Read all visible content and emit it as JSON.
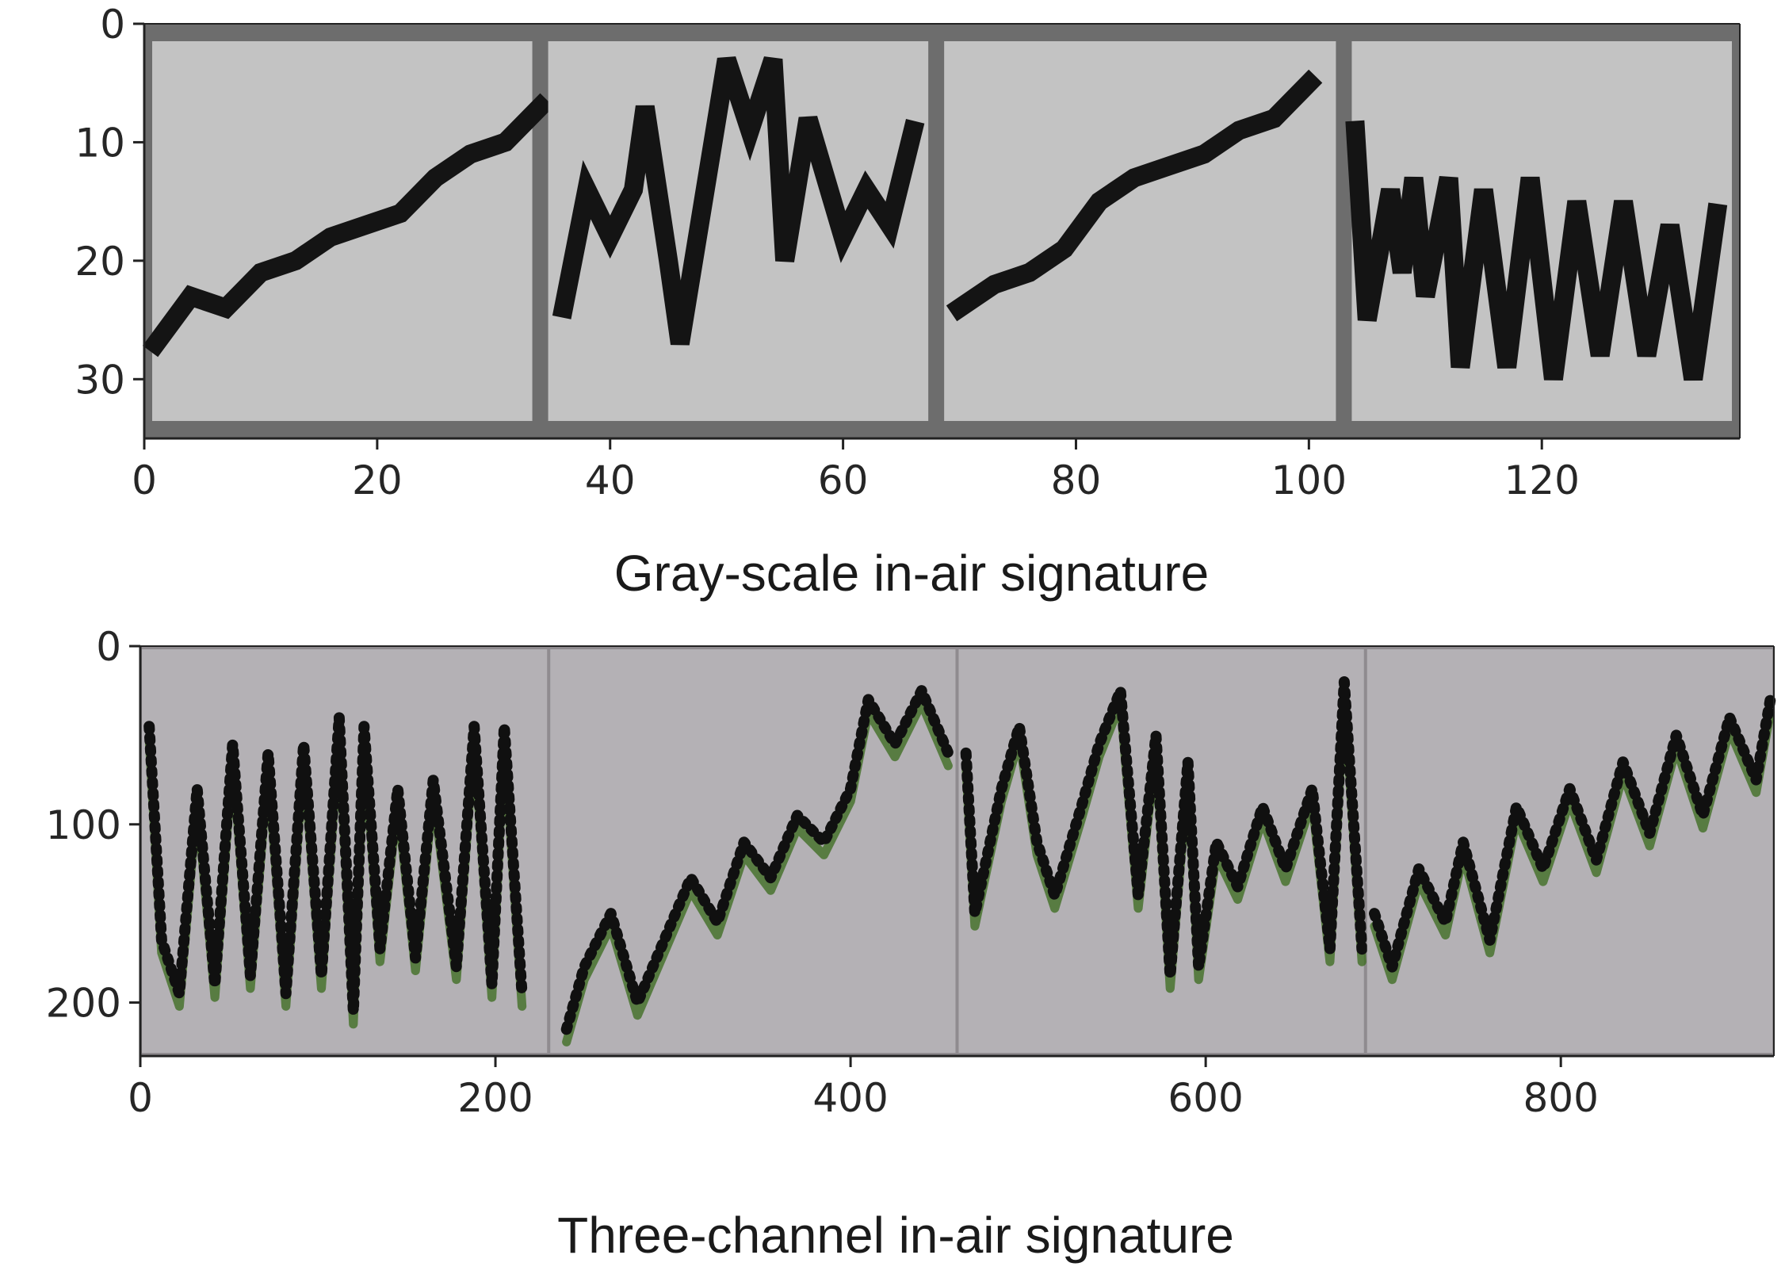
{
  "chart_data": [
    {
      "type": "image",
      "caption": "Gray-scale in-air signature",
      "xlim": [
        0,
        137
      ],
      "ylim": [
        35,
        0
      ],
      "xticks": [
        0,
        20,
        40,
        60,
        80,
        100,
        120
      ],
      "yticks": [
        0,
        10,
        20,
        30
      ],
      "panels": [
        {
          "x_range": [
            0,
            34
          ],
          "trace": [
            [
              1,
              27
            ],
            [
              4,
              23
            ],
            [
              7,
              24
            ],
            [
              10,
              21
            ],
            [
              13,
              20
            ],
            [
              16,
              18
            ],
            [
              19,
              17
            ],
            [
              22,
              16
            ],
            [
              25,
              13
            ],
            [
              28,
              11
            ],
            [
              31,
              10
            ],
            [
              34,
              7
            ]
          ]
        },
        {
          "x_range": [
            34,
            68
          ],
          "trace": [
            [
              36,
              24
            ],
            [
              38,
              14
            ],
            [
              40,
              18
            ],
            [
              42,
              14
            ],
            [
              43,
              7
            ],
            [
              45,
              20
            ],
            [
              46,
              27
            ],
            [
              48,
              15
            ],
            [
              50,
              3
            ],
            [
              52,
              9
            ],
            [
              54,
              3
            ],
            [
              55,
              20
            ],
            [
              57,
              8
            ],
            [
              60,
              18
            ],
            [
              62,
              14
            ],
            [
              64,
              17
            ],
            [
              66,
              9
            ]
          ]
        },
        {
          "x_range": [
            68,
            103
          ],
          "trace": [
            [
              70,
              24
            ],
            [
              73,
              22
            ],
            [
              76,
              21
            ],
            [
              79,
              19
            ],
            [
              82,
              15
            ],
            [
              85,
              13
            ],
            [
              88,
              12
            ],
            [
              91,
              11
            ],
            [
              94,
              9
            ],
            [
              97,
              8
            ],
            [
              100,
              5
            ]
          ]
        },
        {
          "x_range": [
            103,
            137
          ],
          "trace": [
            [
              104,
              9
            ],
            [
              105,
              25
            ],
            [
              107,
              14
            ],
            [
              108,
              21
            ],
            [
              109,
              13
            ],
            [
              110,
              23
            ],
            [
              112,
              13
            ],
            [
              113,
              29
            ],
            [
              115,
              14
            ],
            [
              117,
              29
            ],
            [
              119,
              13
            ],
            [
              121,
              30
            ],
            [
              123,
              15
            ],
            [
              125,
              28
            ],
            [
              127,
              15
            ],
            [
              129,
              28
            ],
            [
              131,
              17
            ],
            [
              133,
              30
            ],
            [
              135,
              16
            ]
          ]
        }
      ],
      "colors": {
        "frame": "#6d6d6d",
        "panel": "#c3c3c3",
        "stroke": "#141414"
      }
    },
    {
      "type": "image",
      "caption": "Three-channel in-air signature",
      "xlim": [
        0,
        920
      ],
      "ylim": [
        230,
        0
      ],
      "xticks": [
        0,
        200,
        400,
        600,
        800
      ],
      "yticks": [
        0,
        100,
        200
      ],
      "panels": [
        {
          "x_range": [
            0,
            230
          ],
          "trace": [
            [
              5,
              45
            ],
            [
              12,
              165
            ],
            [
              22,
              195
            ],
            [
              32,
              80
            ],
            [
              42,
              190
            ],
            [
              52,
              55
            ],
            [
              62,
              185
            ],
            [
              72,
              60
            ],
            [
              82,
              195
            ],
            [
              92,
              55
            ],
            [
              102,
              185
            ],
            [
              112,
              40
            ],
            [
              120,
              205
            ],
            [
              126,
              45
            ],
            [
              135,
              170
            ],
            [
              145,
              80
            ],
            [
              155,
              175
            ],
            [
              165,
              75
            ],
            [
              178,
              180
            ],
            [
              188,
              45
            ],
            [
              198,
              190
            ],
            [
              205,
              45
            ],
            [
              215,
              195
            ]
          ]
        },
        {
          "x_range": [
            230,
            460
          ],
          "trace": [
            [
              240,
              215
            ],
            [
              250,
              180
            ],
            [
              265,
              150
            ],
            [
              280,
              200
            ],
            [
              295,
              165
            ],
            [
              310,
              130
            ],
            [
              325,
              155
            ],
            [
              340,
              110
            ],
            [
              355,
              130
            ],
            [
              370,
              95
            ],
            [
              385,
              110
            ],
            [
              400,
              80
            ],
            [
              410,
              30
            ],
            [
              425,
              55
            ],
            [
              440,
              25
            ],
            [
              455,
              60
            ]
          ]
        },
        {
          "x_range": [
            460,
            690
          ],
          "trace": [
            [
              465,
              60
            ],
            [
              470,
              150
            ],
            [
              485,
              80
            ],
            [
              495,
              45
            ],
            [
              505,
              110
            ],
            [
              515,
              140
            ],
            [
              530,
              90
            ],
            [
              540,
              55
            ],
            [
              552,
              25
            ],
            [
              562,
              140
            ],
            [
              572,
              50
            ],
            [
              580,
              185
            ],
            [
              590,
              65
            ],
            [
              596,
              180
            ],
            [
              606,
              110
            ],
            [
              618,
              135
            ],
            [
              632,
              90
            ],
            [
              645,
              125
            ],
            [
              660,
              80
            ],
            [
              670,
              170
            ],
            [
              678,
              20
            ],
            [
              688,
              170
            ]
          ]
        },
        {
          "x_range": [
            690,
            920
          ],
          "trace": [
            [
              695,
              150
            ],
            [
              705,
              180
            ],
            [
              720,
              125
            ],
            [
              735,
              155
            ],
            [
              745,
              110
            ],
            [
              760,
              165
            ],
            [
              775,
              90
            ],
            [
              790,
              125
            ],
            [
              805,
              80
            ],
            [
              820,
              120
            ],
            [
              835,
              65
            ],
            [
              850,
              105
            ],
            [
              865,
              50
            ],
            [
              880,
              95
            ],
            [
              895,
              40
            ],
            [
              910,
              75
            ],
            [
              918,
              30
            ]
          ]
        }
      ],
      "colors": {
        "frame": "#8f8b8f",
        "panel": "#b4b1b5",
        "stroke": "#101010",
        "stroke_green": "#3a6b1c",
        "stroke_purple": "#5a2a4a"
      }
    }
  ]
}
